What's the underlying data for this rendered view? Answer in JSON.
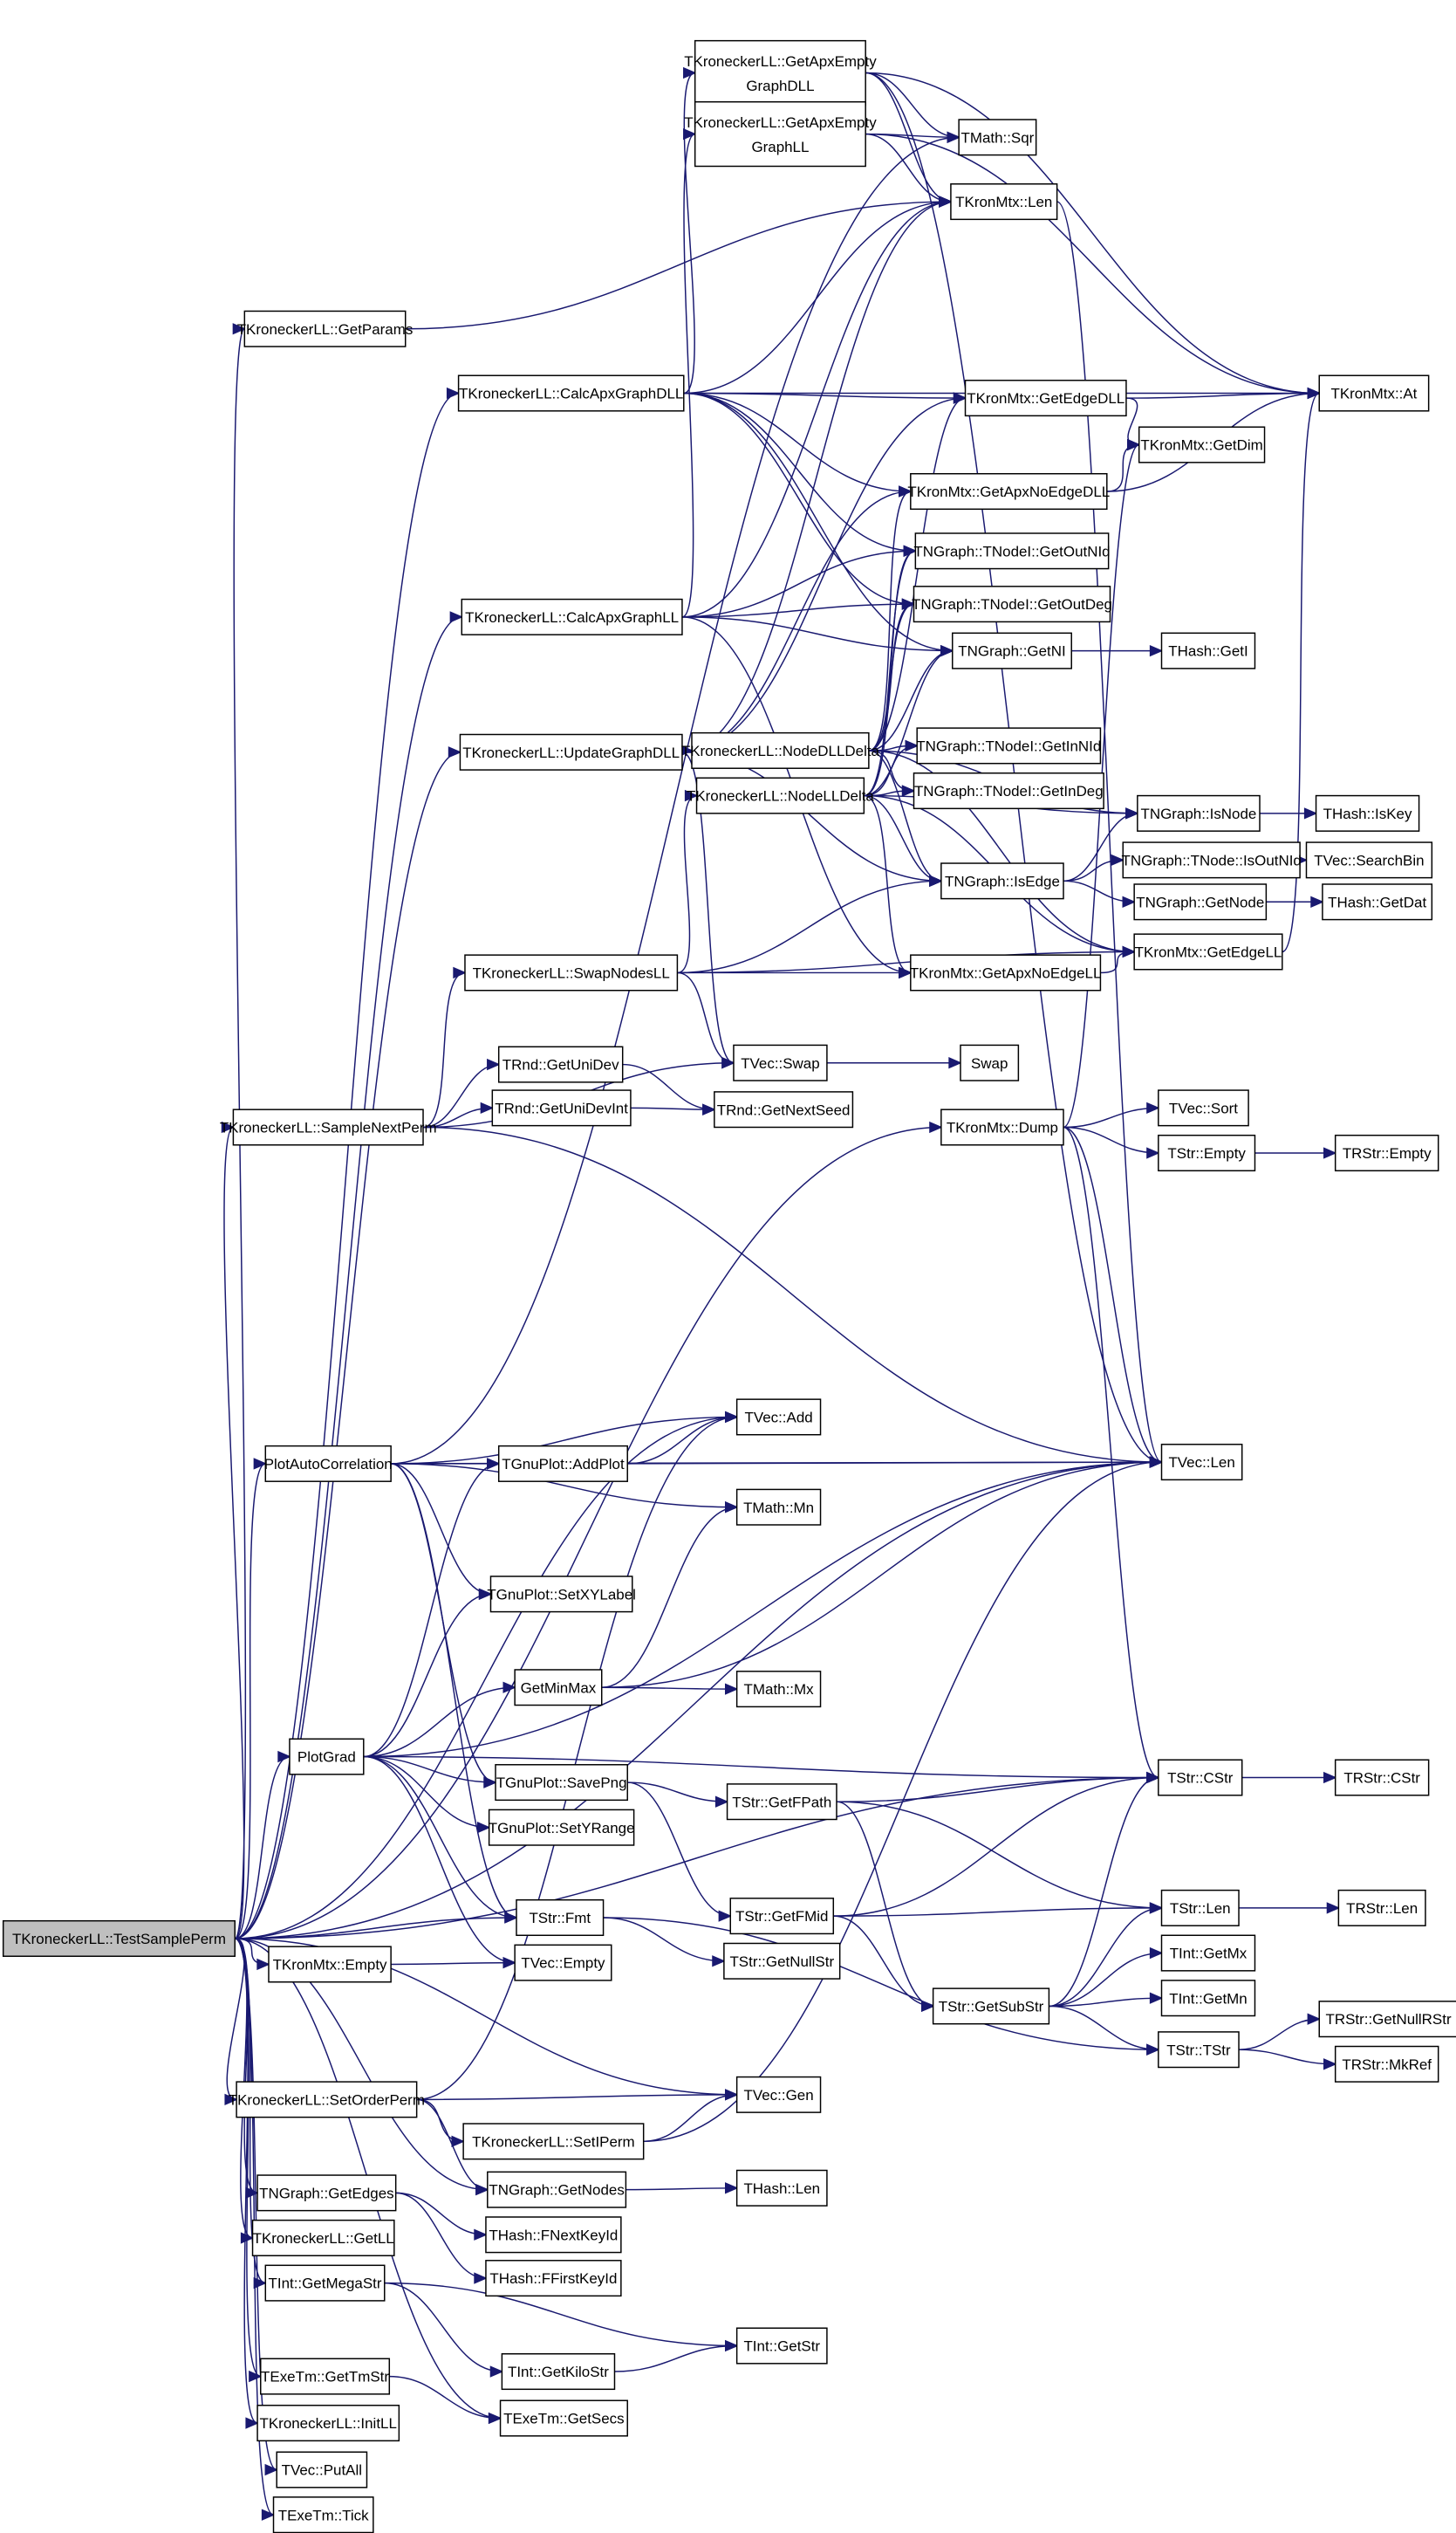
{
  "diagram": {
    "type": "call-graph",
    "colors": {
      "edge": "#191970",
      "root_fill": "#bfbfbf",
      "node_fill": "#ffffff",
      "node_border": "#000000"
    },
    "root": "root",
    "nodes": [
      {
        "id": "root",
        "label": "TKroneckerLL::TestSamplePerm"
      },
      {
        "id": "getparams",
        "label": "TKroneckerLL::GetParams"
      },
      {
        "id": "calcdll",
        "label": "TKroneckerLL::CalcApxGraphDLL"
      },
      {
        "id": "calcll",
        "label": "TKroneckerLL::CalcApxGraphLL"
      },
      {
        "id": "upddll",
        "label": "TKroneckerLL::UpdateGraphDLL"
      },
      {
        "id": "swapll",
        "label": "TKroneckerLL::SwapNodesLL"
      },
      {
        "id": "sampleperm",
        "label": "TKroneckerLL::SampleNextPerm"
      },
      {
        "id": "plotac",
        "label": "PlotAutoCorrelation"
      },
      {
        "id": "plotgrad",
        "label": "PlotGrad"
      },
      {
        "id": "kmempty",
        "label": "TKronMtx::Empty"
      },
      {
        "id": "setorder",
        "label": "TKroneckerLL::SetOrderPerm"
      },
      {
        "id": "getedges",
        "label": "TNGraph::GetEdges"
      },
      {
        "id": "getll",
        "label": "TKroneckerLL::GetLL"
      },
      {
        "id": "megastr",
        "label": "TInt::GetMegaStr"
      },
      {
        "id": "tmstr",
        "label": "TExeTm::GetTmStr"
      },
      {
        "id": "initll",
        "label": "TKroneckerLL::InitLL"
      },
      {
        "id": "putall",
        "label": "TVec::PutAll"
      },
      {
        "id": "tick",
        "label": "TExeTm::Tick"
      },
      {
        "id": "emptydll",
        "label": "TKroneckerLL::GetApxEmpty",
        "label2": "GraphDLL"
      },
      {
        "id": "emptyll",
        "label": "TKroneckerLL::GetApxEmpty",
        "label2": "GraphLL"
      },
      {
        "id": "nodedll",
        "label": "TKroneckerLL::NodeDLLDelta"
      },
      {
        "id": "nodell",
        "label": "TKroneckerLL::NodeLLDelta"
      },
      {
        "id": "uniddev",
        "label": "TRnd::GetUniDev"
      },
      {
        "id": "unidevint",
        "label": "TRnd::GetUniDevInt"
      },
      {
        "id": "addplot",
        "label": "TGnuPlot::AddPlot"
      },
      {
        "id": "setxy",
        "label": "TGnuPlot::SetXYLabel"
      },
      {
        "id": "minmax",
        "label": "GetMinMax"
      },
      {
        "id": "savepng",
        "label": "TGnuPlot::SavePng"
      },
      {
        "id": "setyr",
        "label": "TGnuPlot::SetYRange"
      },
      {
        "id": "fmt",
        "label": "TStr::Fmt"
      },
      {
        "id": "vecempty",
        "label": "TVec::Empty"
      },
      {
        "id": "setiperm",
        "label": "TKroneckerLL::SetIPerm"
      },
      {
        "id": "getnodes",
        "label": "TNGraph::GetNodes"
      },
      {
        "id": "fnext",
        "label": "THash::FNextKeyId"
      },
      {
        "id": "ffirst",
        "label": "THash::FFirstKeyId"
      },
      {
        "id": "kilostr",
        "label": "TInt::GetKiloStr"
      },
      {
        "id": "getsecs",
        "label": "TExeTm::GetSecs"
      },
      {
        "id": "sqr",
        "label": "TMath::Sqr"
      },
      {
        "id": "kmlen",
        "label": "TKronMtx::Len"
      },
      {
        "id": "edgedll",
        "label": "TKronMtx::GetEdgeDLL"
      },
      {
        "id": "noedgedll",
        "label": "TKronMtx::GetApxNoEdgeDLL"
      },
      {
        "id": "outnid",
        "label": "TNGraph::TNodeI::GetOutNId"
      },
      {
        "id": "outdeg",
        "label": "TNGraph::TNodeI::GetOutDeg"
      },
      {
        "id": "getni",
        "label": "TNGraph::GetNI"
      },
      {
        "id": "innid",
        "label": "TNGraph::TNodeI::GetInNId"
      },
      {
        "id": "indeg",
        "label": "TNGraph::TNodeI::GetInDeg"
      },
      {
        "id": "isedge",
        "label": "TNGraph::IsEdge"
      },
      {
        "id": "noedgell",
        "label": "TKronMtx::GetApxNoEdgeLL"
      },
      {
        "id": "vecswap",
        "label": "TVec::Swap"
      },
      {
        "id": "nextseed",
        "label": "TRnd::GetNextSeed"
      },
      {
        "id": "dump",
        "label": "TKronMtx::Dump"
      },
      {
        "id": "vecadd",
        "label": "TVec::Add"
      },
      {
        "id": "mn",
        "label": "TMath::Mn"
      },
      {
        "id": "mx",
        "label": "TMath::Mx"
      },
      {
        "id": "fpath",
        "label": "TStr::GetFPath"
      },
      {
        "id": "fmid",
        "label": "TStr::GetFMid"
      },
      {
        "id": "nullstr",
        "label": "TStr::GetNullStr"
      },
      {
        "id": "vecgen",
        "label": "TVec::Gen"
      },
      {
        "id": "hashlen",
        "label": "THash::Len"
      },
      {
        "id": "substr",
        "label": "TStr::GetSubStr"
      },
      {
        "id": "tstr",
        "label": "TStr::TStr"
      },
      {
        "id": "getstr",
        "label": "TInt::GetStr"
      },
      {
        "id": "at",
        "label": "TKronMtx::At"
      },
      {
        "id": "getdim",
        "label": "TKronMtx::GetDim"
      },
      {
        "id": "geti",
        "label": "THash::GetI"
      },
      {
        "id": "isnode",
        "label": "TNGraph::IsNode"
      },
      {
        "id": "isoutnid",
        "label": "TNGraph::TNode::IsOutNId"
      },
      {
        "id": "getnode",
        "label": "TNGraph::GetNode"
      },
      {
        "id": "edgell",
        "label": "TKronMtx::GetEdgeLL"
      },
      {
        "id": "swap",
        "label": "Swap"
      },
      {
        "id": "vecsort",
        "label": "TVec::Sort"
      },
      {
        "id": "strempty",
        "label": "TStr::Empty"
      },
      {
        "id": "veclen",
        "label": "TVec::Len"
      },
      {
        "id": "cstr",
        "label": "TStr::CStr"
      },
      {
        "id": "strlen",
        "label": "TStr::Len"
      },
      {
        "id": "getmx",
        "label": "TInt::GetMx"
      },
      {
        "id": "getmn",
        "label": "TInt::GetMn"
      },
      {
        "id": "iskey",
        "label": "THash::IsKey"
      },
      {
        "id": "searchbin",
        "label": "TVec::SearchBin"
      },
      {
        "id": "getdat",
        "label": "THash::GetDat"
      },
      {
        "id": "rempty",
        "label": "TRStr::Empty"
      },
      {
        "id": "rcstr",
        "label": "TRStr::CStr"
      },
      {
        "id": "rlen",
        "label": "TRStr::Len"
      },
      {
        "id": "nullrstr",
        "label": "TRStr::GetNullRStr"
      },
      {
        "id": "mkref",
        "label": "TRStr::MkRef"
      }
    ],
    "edges": [
      [
        "root",
        "getparams"
      ],
      [
        "root",
        "calcdll"
      ],
      [
        "root",
        "calcll"
      ],
      [
        "root",
        "upddll"
      ],
      [
        "root",
        "sampleperm"
      ],
      [
        "root",
        "plotac"
      ],
      [
        "root",
        "plotgrad"
      ],
      [
        "root",
        "cstr"
      ],
      [
        "root",
        "fmt"
      ],
      [
        "root",
        "kmempty"
      ],
      [
        "root",
        "vecgen"
      ],
      [
        "root",
        "setorder"
      ],
      [
        "root",
        "getnodes"
      ],
      [
        "root",
        "getedges"
      ],
      [
        "root",
        "getll"
      ],
      [
        "root",
        "megastr"
      ],
      [
        "root",
        "tmstr"
      ],
      [
        "root",
        "getsecs"
      ],
      [
        "root",
        "initll"
      ],
      [
        "root",
        "putall"
      ],
      [
        "root",
        "tick"
      ],
      [
        "root",
        "dump"
      ],
      [
        "root",
        "vecadd"
      ],
      [
        "root",
        "veclen"
      ],
      [
        "getparams",
        "kmlen"
      ],
      [
        "calcdll",
        "emptydll"
      ],
      [
        "calcdll",
        "kmlen"
      ],
      [
        "calcdll",
        "edgedll"
      ],
      [
        "calcdll",
        "noedgedll"
      ],
      [
        "calcdll",
        "outnid"
      ],
      [
        "calcdll",
        "outdeg"
      ],
      [
        "calcdll",
        "getni"
      ],
      [
        "calcdll",
        "at"
      ],
      [
        "calcll",
        "emptyll"
      ],
      [
        "calcll",
        "kmlen"
      ],
      [
        "calcll",
        "outnid"
      ],
      [
        "calcll",
        "outdeg"
      ],
      [
        "calcll",
        "getni"
      ],
      [
        "calcll",
        "noedgell"
      ],
      [
        "upddll",
        "nodedll"
      ],
      [
        "upddll",
        "edgedll"
      ],
      [
        "upddll",
        "kmlen"
      ],
      [
        "upddll",
        "isedge"
      ],
      [
        "upddll",
        "vecswap"
      ],
      [
        "upddll",
        "noedgedll"
      ],
      [
        "emptydll",
        "sqr"
      ],
      [
        "emptydll",
        "kmlen"
      ],
      [
        "emptydll",
        "at"
      ],
      [
        "emptydll",
        "veclen"
      ],
      [
        "emptyll",
        "sqr"
      ],
      [
        "emptyll",
        "kmlen"
      ],
      [
        "emptyll",
        "at"
      ],
      [
        "kmlen",
        "veclen"
      ],
      [
        "edgedll",
        "at"
      ],
      [
        "edgedll",
        "getdim"
      ],
      [
        "noedgedll",
        "getdim"
      ],
      [
        "noedgedll",
        "at"
      ],
      [
        "getni",
        "geti"
      ],
      [
        "nodedll",
        "edgedll"
      ],
      [
        "nodedll",
        "noedgedll"
      ],
      [
        "nodedll",
        "outnid"
      ],
      [
        "nodedll",
        "outdeg"
      ],
      [
        "nodedll",
        "getni"
      ],
      [
        "nodedll",
        "innid"
      ],
      [
        "nodedll",
        "indeg"
      ],
      [
        "nodedll",
        "isnode"
      ],
      [
        "nodedll",
        "isedge"
      ],
      [
        "nodedll",
        "edgell"
      ],
      [
        "nodell",
        "outnid"
      ],
      [
        "nodell",
        "outdeg"
      ],
      [
        "nodell",
        "getni"
      ],
      [
        "nodell",
        "innid"
      ],
      [
        "nodell",
        "indeg"
      ],
      [
        "nodell",
        "isnode"
      ],
      [
        "nodell",
        "isedge"
      ],
      [
        "nodell",
        "noedgell"
      ],
      [
        "nodell",
        "edgell"
      ],
      [
        "isnode",
        "iskey"
      ],
      [
        "isedge",
        "isnode"
      ],
      [
        "isedge",
        "isoutnid"
      ],
      [
        "isedge",
        "getnode"
      ],
      [
        "isoutnid",
        "searchbin"
      ],
      [
        "getnode",
        "getdat"
      ],
      [
        "edgell",
        "at"
      ],
      [
        "noedgell",
        "edgell"
      ],
      [
        "swapll",
        "nodell"
      ],
      [
        "swapll",
        "isedge"
      ],
      [
        "swapll",
        "noedgell"
      ],
      [
        "swapll",
        "edgell"
      ],
      [
        "swapll",
        "vecswap"
      ],
      [
        "vecswap",
        "swap"
      ],
      [
        "sampleperm",
        "swapll"
      ],
      [
        "sampleperm",
        "vecswap"
      ],
      [
        "sampleperm",
        "uniddev"
      ],
      [
        "sampleperm",
        "unidevint"
      ],
      [
        "sampleperm",
        "veclen"
      ],
      [
        "uniddev",
        "nextseed"
      ],
      [
        "unidevint",
        "nextseed"
      ],
      [
        "dump",
        "getdim"
      ],
      [
        "dump",
        "vecsort"
      ],
      [
        "dump",
        "strempty"
      ],
      [
        "dump",
        "veclen"
      ],
      [
        "dump",
        "cstr"
      ],
      [
        "strempty",
        "rempty"
      ],
      [
        "plotac",
        "vecadd"
      ],
      [
        "plotac",
        "addplot"
      ],
      [
        "plotac",
        "veclen"
      ],
      [
        "plotac",
        "mn"
      ],
      [
        "plotac",
        "setxy"
      ],
      [
        "plotac",
        "savepng"
      ],
      [
        "plotac",
        "fmt"
      ],
      [
        "plotac",
        "sqr"
      ],
      [
        "addplot",
        "vecadd"
      ],
      [
        "addplot",
        "veclen"
      ],
      [
        "minmax",
        "mn"
      ],
      [
        "minmax",
        "mx"
      ],
      [
        "minmax",
        "veclen"
      ],
      [
        "plotgrad",
        "addplot"
      ],
      [
        "plotgrad",
        "setxy"
      ],
      [
        "plotgrad",
        "minmax"
      ],
      [
        "plotgrad",
        "cstr"
      ],
      [
        "plotgrad",
        "savepng"
      ],
      [
        "plotgrad",
        "setyr"
      ],
      [
        "plotgrad",
        "fmt"
      ],
      [
        "plotgrad",
        "vecempty"
      ],
      [
        "plotgrad",
        "veclen"
      ],
      [
        "savepng",
        "fpath"
      ],
      [
        "savepng",
        "fmid"
      ],
      [
        "fpath",
        "cstr"
      ],
      [
        "fpath",
        "strlen"
      ],
      [
        "fpath",
        "substr"
      ],
      [
        "fmid",
        "cstr"
      ],
      [
        "fmid",
        "strlen"
      ],
      [
        "fmid",
        "substr"
      ],
      [
        "substr",
        "cstr"
      ],
      [
        "substr",
        "strlen"
      ],
      [
        "substr",
        "getmx"
      ],
      [
        "substr",
        "getmn"
      ],
      [
        "substr",
        "tstr"
      ],
      [
        "fmt",
        "nullstr"
      ],
      [
        "fmt",
        "tstr"
      ],
      [
        "cstr",
        "rcstr"
      ],
      [
        "strlen",
        "rlen"
      ],
      [
        "tstr",
        "nullrstr"
      ],
      [
        "tstr",
        "mkref"
      ],
      [
        "kmempty",
        "vecempty"
      ],
      [
        "setorder",
        "vecgen"
      ],
      [
        "setorder",
        "setiperm"
      ],
      [
        "setorder",
        "getnodes"
      ],
      [
        "setorder",
        "vecadd"
      ],
      [
        "setiperm",
        "vecgen"
      ],
      [
        "setiperm",
        "veclen"
      ],
      [
        "getnodes",
        "hashlen"
      ],
      [
        "getedges",
        "fnext"
      ],
      [
        "getedges",
        "ffirst"
      ],
      [
        "megastr",
        "kilostr"
      ],
      [
        "megastr",
        "getstr"
      ],
      [
        "kilostr",
        "getstr"
      ],
      [
        "tmstr",
        "getsecs"
      ]
    ]
  }
}
